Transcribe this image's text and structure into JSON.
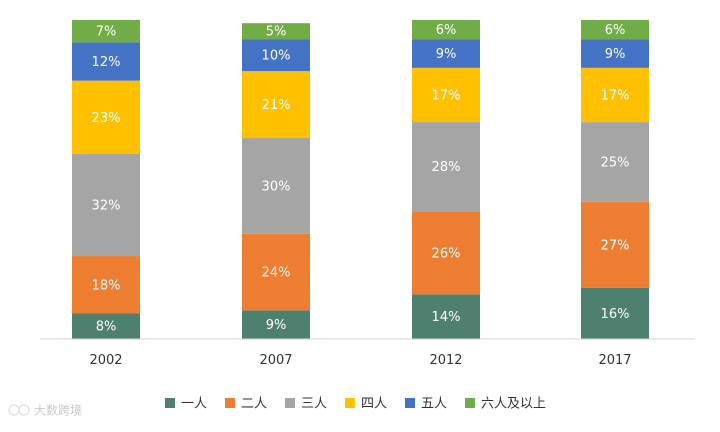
{
  "chart_data": {
    "type": "bar",
    "stacked": true,
    "categories": [
      "2002",
      "2007",
      "2012",
      "2017"
    ],
    "series": [
      {
        "name": "一人",
        "color": "#4e8070",
        "values": [
          8,
          9,
          14,
          16
        ],
        "labels": [
          "8%",
          "9%",
          "14%",
          "16%"
        ]
      },
      {
        "name": "二人",
        "color": "#ed7d31",
        "values": [
          18,
          24,
          26,
          27
        ],
        "labels": [
          "18%",
          "24%",
          "26%",
          "27%"
        ]
      },
      {
        "name": "三人",
        "color": "#a5a5a5",
        "values": [
          32,
          30,
          28,
          25
        ],
        "labels": [
          "32%",
          "30%",
          "28%",
          "25%"
        ]
      },
      {
        "name": "四人",
        "color": "#ffc000",
        "values": [
          23,
          21,
          17,
          17
        ],
        "labels": [
          "23%",
          "21%",
          "17%",
          "17%"
        ]
      },
      {
        "name": "五人",
        "color": "#4472c4",
        "values": [
          12,
          10,
          9,
          9
        ],
        "labels": [
          "12%",
          "10%",
          "9%",
          "9%"
        ]
      },
      {
        "name": "六人及以上",
        "color": "#70ad47",
        "values": [
          7,
          5,
          6,
          6
        ],
        "labels": [
          "7%",
          "5%",
          "6%",
          "6%"
        ]
      }
    ],
    "ylim": [
      0,
      100
    ],
    "grid": false,
    "legend_position": "bottom"
  },
  "watermark": {
    "text": "大数跨境"
  }
}
